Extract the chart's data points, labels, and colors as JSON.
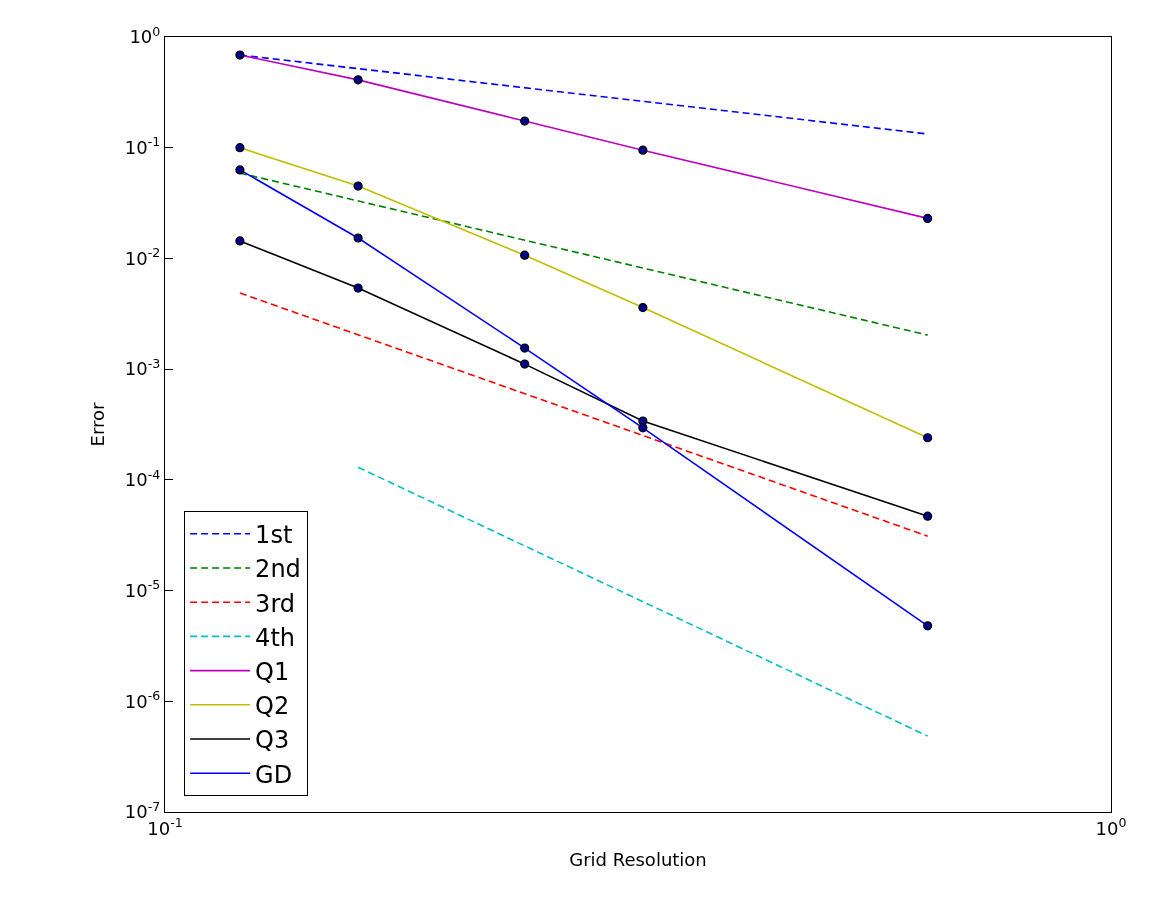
{
  "chart_data": {
    "type": "line",
    "xlabel": "Grid Resolution",
    "ylabel": "Error",
    "log": "xy",
    "xlim": [
      0.1,
      1
    ],
    "xticks": [
      {
        "value": 0.1,
        "label": "10$^{-1}$"
      },
      {
        "value": 1,
        "label": "10$^{0}$"
      }
    ],
    "ylim": [
      1e-07,
      1
    ],
    "yticks": [
      {
        "value": 1e-07,
        "label": "10$^{-7}$"
      },
      {
        "value": 1e-06,
        "label": "10$^{-6}$"
      },
      {
        "value": 1e-05,
        "label": "10$^{-5}$"
      },
      {
        "value": 0.0001,
        "label": "10$^{-4}$"
      },
      {
        "value": 0.001,
        "label": "10$^{-3}$"
      },
      {
        "value": 0.01,
        "label": "10$^{-2}$"
      },
      {
        "value": 0.1,
        "label": "10$^{-1}$"
      },
      {
        "value": 1,
        "label": "10$^{0}$"
      }
    ],
    "legend": "bottom left",
    "series": [
      {
        "name": "1st",
        "color": "#0000ff",
        "line_style": "dashed",
        "x": [
          0.12,
          0.64
        ],
        "values": [
          0.687,
          0.133
        ]
      },
      {
        "name": "2nd",
        "color": "#008000",
        "line_style": "dashed",
        "x": [
          0.12,
          0.64
        ],
        "values": [
          0.059,
          0.00203
        ]
      },
      {
        "name": "3rd",
        "color": "#ff0000",
        "line_style": "dashed",
        "x": [
          0.12,
          0.64
        ],
        "values": [
          0.00487,
          3.1e-05
        ]
      },
      {
        "name": "4th",
        "color": "#00bfbf",
        "line_style": "dashed",
        "x": [
          0.16,
          0.64
        ],
        "values": [
          0.00013,
          4.85e-07
        ]
      },
      {
        "name": "Q1",
        "color": "#bf00bf",
        "line_style": "solid",
        "x": [
          0.12,
          0.16,
          0.24,
          0.32,
          0.64
        ],
        "values": [
          0.687,
          0.41,
          0.174,
          0.095,
          0.023
        ]
      },
      {
        "name": "Q2",
        "color": "#bfbf00",
        "line_style": "solid",
        "x": [
          0.12,
          0.16,
          0.24,
          0.32,
          0.64
        ],
        "values": [
          0.1,
          0.045,
          0.0107,
          0.0036,
          0.00024
        ]
      },
      {
        "name": "Q3",
        "color": "#000000",
        "line_style": "solid",
        "x": [
          0.12,
          0.16,
          0.24,
          0.32,
          0.64
        ],
        "values": [
          0.0144,
          0.0054,
          0.00111,
          0.00034,
          4.7e-05
        ]
      },
      {
        "name": "GD",
        "color": "#0000ff",
        "line_style": "solid",
        "x": [
          0.12,
          0.16,
          0.24,
          0.32,
          0.64
        ],
        "values": [
          0.063,
          0.0153,
          0.00155,
          0.000295,
          4.8e-06
        ]
      },
      {
        "type": "scatter",
        "color": "#00008b",
        "marker": "circle",
        "x": [
          0.12,
          0.16,
          0.24,
          0.32,
          0.64,
          0.12,
          0.16,
          0.24,
          0.32,
          0.64,
          0.12,
          0.16,
          0.24,
          0.32,
          0.64,
          0.12,
          0.16,
          0.24,
          0.32,
          0.64
        ],
        "values": [
          0.687,
          0.41,
          0.174,
          0.095,
          0.023,
          0.1,
          0.045,
          0.0107,
          0.0036,
          0.00024,
          0.0144,
          0.0054,
          0.00111,
          0.00034,
          4.7e-05,
          0.063,
          0.0153,
          0.00155,
          0.000295,
          4.8e-06
        ]
      }
    ]
  }
}
